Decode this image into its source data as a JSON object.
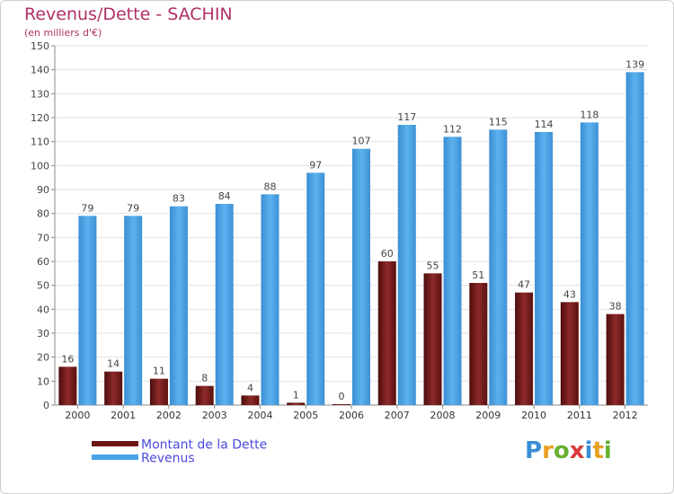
{
  "header": {
    "title": "Revenus/Dette - SACHIN",
    "subtitle": "(en milliers d'€)"
  },
  "chart_data": {
    "type": "bar",
    "categories": [
      "2000",
      "2001",
      "2002",
      "2003",
      "2004",
      "2005",
      "2006",
      "2007",
      "2008",
      "2009",
      "2010",
      "2011",
      "2012"
    ],
    "series": [
      {
        "name": "Montant de la Dette",
        "values": [
          16,
          14,
          11,
          8,
          4,
          1,
          0,
          60,
          55,
          51,
          47,
          43,
          38
        ],
        "color": "#7a1a1a"
      },
      {
        "name": "Revenus",
        "values": [
          79,
          79,
          83,
          84,
          88,
          97,
          107,
          117,
          112,
          115,
          114,
          118,
          139
        ],
        "color": "#4aa3e6"
      }
    ],
    "title": "Revenus/Dette - SACHIN",
    "ylabel": "(en milliers d'€)",
    "ylim": [
      0,
      150
    ],
    "yticks": [
      0,
      10,
      20,
      30,
      40,
      50,
      60,
      70,
      80,
      90,
      100,
      110,
      120,
      130,
      140,
      150
    ],
    "grid": true,
    "legend": "bottom-left"
  },
  "legend": {
    "items": [
      {
        "label": "Montant de la Dette",
        "color": "#6b1515"
      },
      {
        "label": "Revenus",
        "color": "#4aa3e6"
      }
    ]
  },
  "logo": {
    "letters": [
      "P",
      "r",
      "o",
      "x",
      "i",
      "t",
      "i"
    ],
    "colors": [
      "#3b8fd6",
      "#e8a020",
      "#66b032",
      "#d93a3a",
      "#3b8fd6",
      "#e8a020",
      "#66b032"
    ]
  }
}
